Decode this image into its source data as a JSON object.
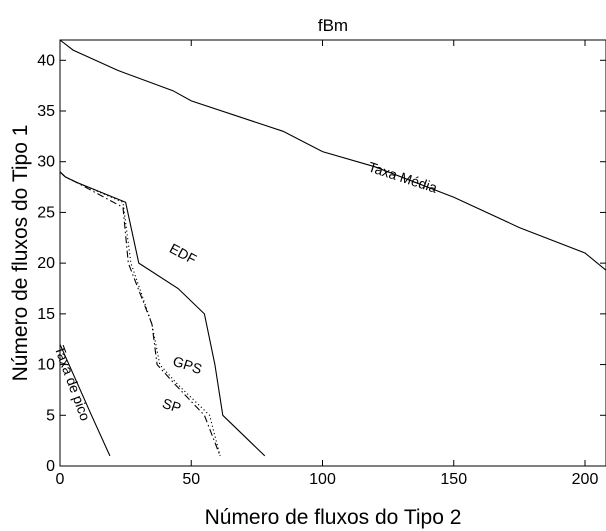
{
  "chart_data": {
    "type": "line",
    "title": "fBm",
    "xlabel": "Número de fluxos do Tipo 2",
    "ylabel": "Número de fluxos do Tipo 1",
    "xlim": [
      0,
      208
    ],
    "ylim": [
      0,
      42
    ],
    "xticks": [
      0,
      50,
      100,
      150,
      200
    ],
    "yticks": [
      0,
      5,
      10,
      15,
      20,
      25,
      30,
      35,
      40
    ],
    "grid": false,
    "series": [
      {
        "name": "Taxa Média",
        "style": "solid",
        "x": [
          0,
          5,
          22,
          43,
          50,
          85,
          100,
          120,
          150,
          175,
          200,
          208
        ],
        "y": [
          42,
          41,
          39,
          37,
          36,
          33,
          31,
          29.5,
          26.5,
          23.5,
          21,
          19.3
        ]
      },
      {
        "name": "EDF",
        "style": "solid",
        "x": [
          0,
          2,
          6,
          25,
          30,
          45,
          55,
          59,
          62,
          78
        ],
        "y": [
          29,
          28.5,
          28,
          26,
          20,
          17.5,
          15,
          10,
          5,
          1
        ]
      },
      {
        "name": "GPS",
        "style": "dotted",
        "x": [
          0,
          2,
          6,
          24,
          27,
          35,
          38,
          45,
          57,
          61
        ],
        "y": [
          29,
          28.5,
          28,
          26,
          20,
          14,
          10,
          8,
          5,
          1
        ]
      },
      {
        "name": "SP",
        "style": "dashdot",
        "x": [
          0,
          2,
          6,
          24,
          26,
          35,
          37,
          44,
          55,
          61
        ],
        "y": [
          29,
          28.5,
          28,
          25.5,
          20,
          14,
          10,
          8,
          5,
          1
        ]
      },
      {
        "name": "Taxa de pico",
        "style": "solid",
        "x": [
          0,
          12,
          19
        ],
        "y": [
          12,
          5,
          1
        ]
      }
    ],
    "annotations": [
      {
        "text": "Taxa Média",
        "x": 130,
        "y": 28,
        "angle": 18
      },
      {
        "text": "EDF",
        "x": 46,
        "y": 20.5,
        "angle": 28
      },
      {
        "text": "GPS",
        "x": 48,
        "y": 9.5,
        "angle": 18
      },
      {
        "text": "SP",
        "x": 42,
        "y": 5.5,
        "angle": 18
      },
      {
        "text": "Taxa de pico",
        "x": 3,
        "y": 8,
        "angle": 70
      }
    ]
  }
}
